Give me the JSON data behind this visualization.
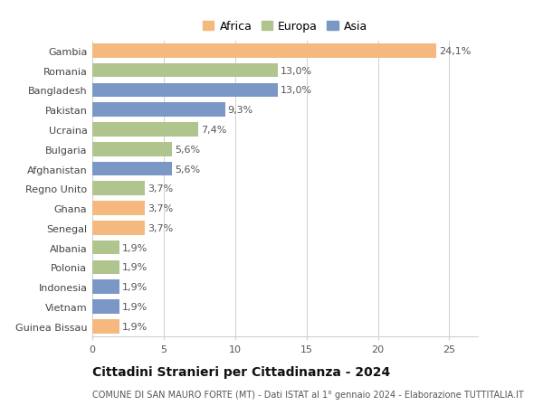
{
  "categories": [
    "Guinea Bissau",
    "Vietnam",
    "Indonesia",
    "Polonia",
    "Albania",
    "Senegal",
    "Ghana",
    "Regno Unito",
    "Afghanistan",
    "Bulgaria",
    "Ucraina",
    "Pakistan",
    "Bangladesh",
    "Romania",
    "Gambia"
  ],
  "values": [
    1.9,
    1.9,
    1.9,
    1.9,
    1.9,
    3.7,
    3.7,
    3.7,
    5.6,
    5.6,
    7.4,
    9.3,
    13.0,
    13.0,
    24.1
  ],
  "colors": [
    "#F5B97F",
    "#7A97C5",
    "#7A97C5",
    "#B0C48E",
    "#B0C48E",
    "#F5B97F",
    "#F5B97F",
    "#B0C48E",
    "#7A97C5",
    "#B0C48E",
    "#B0C48E",
    "#7A97C5",
    "#7A97C5",
    "#B0C48E",
    "#F5B97F"
  ],
  "labels": [
    "1,9%",
    "1,9%",
    "1,9%",
    "1,9%",
    "1,9%",
    "3,7%",
    "3,7%",
    "3,7%",
    "5,6%",
    "5,6%",
    "7,4%",
    "9,3%",
    "13,0%",
    "13,0%",
    "24,1%"
  ],
  "legend": [
    {
      "label": "Africa",
      "color": "#F5B97F"
    },
    {
      "label": "Europa",
      "color": "#B0C48E"
    },
    {
      "label": "Asia",
      "color": "#7A97C5"
    }
  ],
  "xlim": [
    0,
    27
  ],
  "xticks": [
    0,
    5,
    10,
    15,
    20,
    25
  ],
  "title": "Cittadini Stranieri per Cittadinanza - 2024",
  "subtitle": "COMUNE DI SAN MAURO FORTE (MT) - Dati ISTAT al 1° gennaio 2024 - Elaborazione TUTTITALIA.IT",
  "background_color": "#ffffff",
  "grid_color": "#d0d0d0",
  "bar_height": 0.72,
  "label_fontsize": 8,
  "ytick_fontsize": 8,
  "xtick_fontsize": 8,
  "title_fontsize": 10,
  "subtitle_fontsize": 7,
  "legend_fontsize": 9
}
